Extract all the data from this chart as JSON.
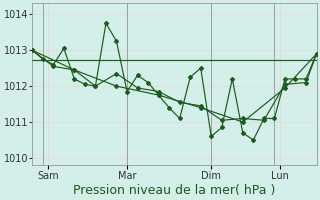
{
  "bg_color": "#d4eeea",
  "grid_color": "#e8d8d8",
  "line_color": "#1a5c1a",
  "marker_color": "#1a5c1a",
  "xlabel": "Pression niveau de la mer( hPa )",
  "xlabel_fontsize": 9,
  "xlabel_color": "#1a5c1a",
  "tick_fontsize": 7,
  "ylim": [
    1009.8,
    1014.3
  ],
  "yticks": [
    1010,
    1011,
    1012,
    1013,
    1014
  ],
  "xlim": [
    0,
    27
  ],
  "day_positions": [
    1.5,
    9,
    17,
    23.5
  ],
  "day_labels": [
    "Sam",
    "Mar",
    "Dim",
    "Lun"
  ],
  "vline_positions": [
    1,
    9,
    17,
    23
  ],
  "series_zigzag_x": [
    0,
    1,
    2,
    3,
    4,
    5,
    6,
    7,
    8,
    9,
    10,
    11,
    12,
    13,
    14,
    15,
    16,
    17,
    18,
    19,
    20,
    21,
    22,
    23,
    24,
    25,
    26,
    27
  ],
  "series_zigzag_y": [
    1013.0,
    1012.75,
    1012.6,
    1013.05,
    1012.2,
    1012.05,
    1012.0,
    1013.75,
    1013.25,
    1011.85,
    1012.3,
    1012.1,
    1011.75,
    1011.4,
    1011.1,
    1012.25,
    1012.5,
    1010.6,
    1010.85,
    1012.2,
    1010.7,
    1010.5,
    1011.1,
    1011.1,
    1012.2,
    1012.2,
    1012.2,
    1012.9
  ],
  "series_medium_x": [
    0,
    2,
    4,
    6,
    8,
    10,
    12,
    14,
    16,
    18,
    20,
    22,
    24,
    26,
    27
  ],
  "series_medium_y": [
    1013.0,
    1012.55,
    1012.45,
    1012.0,
    1012.35,
    1011.95,
    1011.85,
    1011.55,
    1011.45,
    1011.05,
    1011.1,
    1011.05,
    1012.05,
    1012.1,
    1012.9
  ],
  "series_slow_x": [
    0,
    4,
    8,
    12,
    16,
    20,
    24,
    27
  ],
  "series_slow_y": [
    1013.0,
    1012.45,
    1012.0,
    1011.75,
    1011.4,
    1011.0,
    1011.95,
    1012.9
  ],
  "flat_line_x": [
    0,
    27
  ],
  "flat_line_y": [
    1012.72,
    1012.72
  ]
}
